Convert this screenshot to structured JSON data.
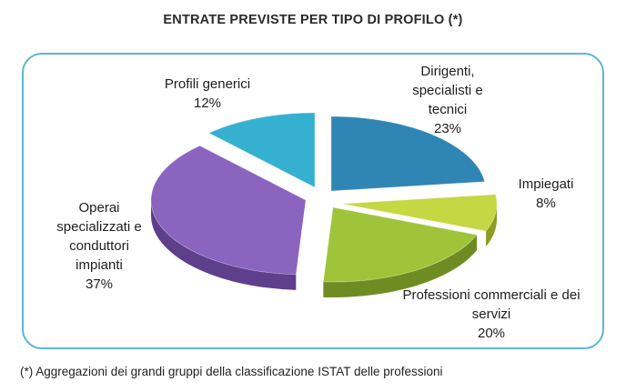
{
  "chart_data": {
    "type": "pie",
    "title": "ENTRATE PREVISTE PER TIPO DI PROFILO (*)",
    "slices": [
      {
        "label_lines": [
          "Dirigenti,",
          "specialisti e",
          "tecnici"
        ],
        "value": 23,
        "value_label": "23%",
        "color": "#2f86b4",
        "side_color": "#1d5f84"
      },
      {
        "label_lines": [
          "Impiegati"
        ],
        "value": 8,
        "value_label": "8%",
        "color": "#c5d743",
        "side_color": "#8e9c25"
      },
      {
        "label_lines": [
          "Professioni commerciali e dei",
          "servizi"
        ],
        "value": 20,
        "value_label": "20%",
        "color": "#9fc43a",
        "side_color": "#6f8c22"
      },
      {
        "label_lines": [
          "Operai",
          "specializzati e",
          "conduttori",
          "impianti"
        ],
        "value": 37,
        "value_label": "37%",
        "color": "#8a64bf",
        "side_color": "#5e3f8c"
      },
      {
        "label_lines": [
          "Profili generici"
        ],
        "value": 12,
        "value_label": "12%",
        "color": "#35b0d1",
        "side_color": "#1f7f9c"
      }
    ],
    "footnote": "(*) Aggregazioni dei grandi gruppi della classificazione ISTAT delle professioni"
  }
}
